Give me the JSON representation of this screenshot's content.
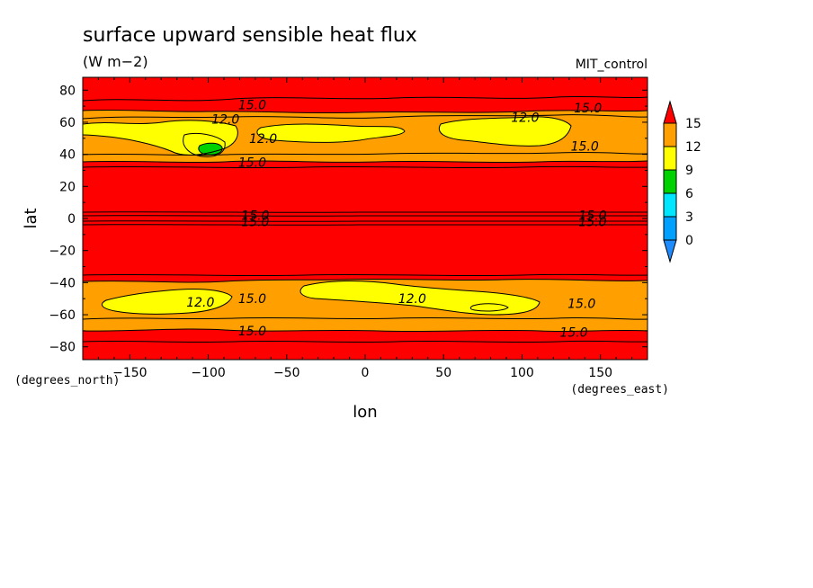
{
  "chart_data": {
    "type": "contour",
    "title": "surface upward sensible heat flux",
    "units": "(W m−2)",
    "dataset": "MIT_control",
    "xlabel": "lon",
    "ylabel": "lat",
    "x_unit_note": "(degrees_east)",
    "y_unit_note": "(degrees_north)",
    "xlim": [
      -180,
      180
    ],
    "ylim": [
      -88,
      88
    ],
    "x_ticks": [
      -150,
      -100,
      -50,
      0,
      50,
      100,
      150
    ],
    "x_tick_labels": [
      "−150",
      "−100",
      "−50",
      "0",
      "50",
      "100",
      "150"
    ],
    "y_ticks": [
      -80,
      -60,
      -40,
      -20,
      0,
      20,
      40,
      60,
      80
    ],
    "y_tick_labels": [
      "−80",
      "−60",
      "−40",
      "−20",
      "0",
      "20",
      "40",
      "60",
      "80"
    ],
    "levels": [
      0,
      3,
      6,
      9,
      12,
      15
    ],
    "level_labels": [
      "0",
      "3",
      "6",
      "9",
      "12",
      "15"
    ],
    "colors": {
      "below_0": "#1e8cff",
      "0_3": "#00a0ff",
      "3_6": "#00e6ff",
      "6_9": "#00d200",
      "9_12": "#ffff00",
      "12_15": "#ffa000",
      "above_15": "#ff0000"
    },
    "regions": [
      {
        "name": "background",
        "level": ">15",
        "color_key": "above_15"
      },
      {
        "name": "north-band",
        "lat_range": [
          38,
          68
        ],
        "level": "12-15",
        "color_key": "12_15"
      },
      {
        "name": "north-yellow-west",
        "lon_range": [
          -180,
          -55
        ],
        "lat_range": [
          44,
          62
        ],
        "level": "9-12",
        "color_key": "9_12"
      },
      {
        "name": "north-yellow-mid",
        "lon_range": [
          -50,
          25
        ],
        "lat_range": [
          48,
          60
        ],
        "level": "9-12",
        "color_key": "9_12"
      },
      {
        "name": "north-yellow-east",
        "lon_range": [
          45,
          125
        ],
        "lat_range": [
          46,
          62
        ],
        "level": "9-12",
        "color_key": "9_12"
      },
      {
        "name": "north-green",
        "lon_range": [
          -108,
          -94
        ],
        "lat_range": [
          41,
          47
        ],
        "level": "6-9",
        "color_key": "6_9"
      },
      {
        "name": "south-band",
        "lat_range": [
          -70,
          -38
        ],
        "level": "12-15",
        "color_key": "12_15"
      },
      {
        "name": "south-yellow-west",
        "lon_range": [
          -170,
          -90
        ],
        "lat_range": [
          -62,
          -48
        ],
        "level": "9-12",
        "color_key": "9_12"
      },
      {
        "name": "south-yellow-east",
        "lon_range": [
          -40,
          110
        ],
        "lat_range": [
          -64,
          -44
        ],
        "level": "9-12",
        "color_key": "9_12"
      }
    ],
    "contour_labels": [
      {
        "text": "15.0",
        "lon": -72,
        "lat": 71
      },
      {
        "text": "12.0",
        "lon": -89,
        "lat": 62
      },
      {
        "text": "12.0",
        "lon": -65,
        "lat": 50
      },
      {
        "text": "15.0",
        "lon": -72,
        "lat": 35
      },
      {
        "text": "12.0",
        "lon": 102,
        "lat": 63
      },
      {
        "text": "15.0",
        "lon": 142,
        "lat": 69
      },
      {
        "text": "15.0",
        "lon": 140,
        "lat": 45
      },
      {
        "text": "15.0",
        "lon": -70,
        "lat": 2
      },
      {
        "text": "15.0",
        "lon": -70,
        "lat": -2
      },
      {
        "text": "15.0",
        "lon": 145,
        "lat": 2
      },
      {
        "text": "15.0",
        "lon": 145,
        "lat": -2
      },
      {
        "text": "12.0",
        "lon": -105,
        "lat": -52
      },
      {
        "text": "15.0",
        "lon": -72,
        "lat": -50
      },
      {
        "text": "12.0",
        "lon": 30,
        "lat": -50
      },
      {
        "text": "15.0",
        "lon": 138,
        "lat": -53
      },
      {
        "text": "15.0",
        "lon": -72,
        "lat": -70
      },
      {
        "text": "15.0",
        "lon": 133,
        "lat": -71
      }
    ]
  }
}
